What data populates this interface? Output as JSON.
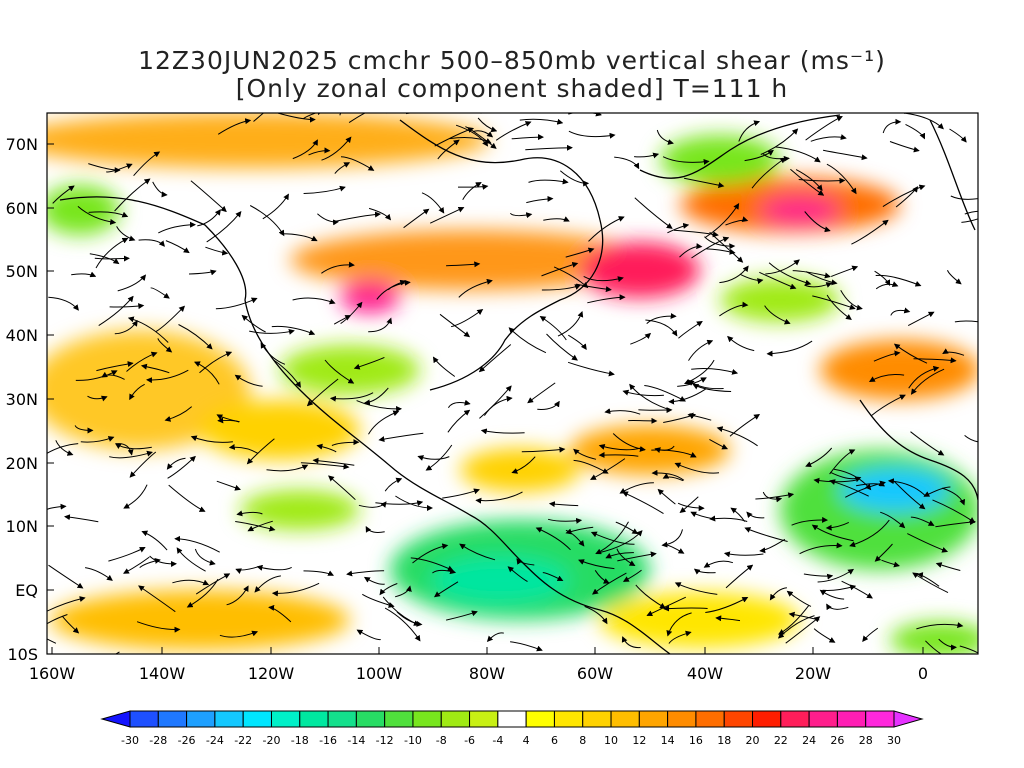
{
  "title": {
    "line1": "12Z30JUN2025 cmchr 500–850mb vertical shear (ms⁻¹)",
    "line2": "[Only zonal component shaded] T=111 h"
  },
  "map": {
    "lat_labels": [
      "70N",
      "60N",
      "50N",
      "40N",
      "30N",
      "20N",
      "10N",
      "EQ",
      "10S"
    ],
    "lon_labels": [
      "160W",
      "140W",
      "120W",
      "100W",
      "80W",
      "60W",
      "40W",
      "20W",
      "0"
    ],
    "lat_range": [
      -10,
      75
    ],
    "lon_range": [
      -160,
      10
    ],
    "field": "zonal component of 500-850mb vertical shear (shaded) with streamlines"
  },
  "colorbar": {
    "labels": [
      "-30",
      "-28",
      "-26",
      "-24",
      "-22",
      "-20",
      "-18",
      "-16",
      "-14",
      "-12",
      "-10",
      "-8",
      "-6",
      "-4",
      "4",
      "6",
      "8",
      "10",
      "12",
      "14",
      "16",
      "18",
      "20",
      "22",
      "24",
      "26",
      "28",
      "30"
    ],
    "colors": [
      "#1414ff",
      "#1e50ff",
      "#1f78ff",
      "#1ea0ff",
      "#14c8ff",
      "#00e6ff",
      "#00f0c8",
      "#00e8a0",
      "#14e08c",
      "#28dc64",
      "#50e03c",
      "#78e61e",
      "#a0ea14",
      "#c8f014",
      "#ffffff",
      "#ffff00",
      "#ffe600",
      "#ffd200",
      "#ffbe00",
      "#ffa500",
      "#ff8c00",
      "#ff6e00",
      "#ff4600",
      "#ff1e00",
      "#ff1e5a",
      "#ff1e8c",
      "#ff1eb4",
      "#ff28dc",
      "#e632ff"
    ]
  }
}
